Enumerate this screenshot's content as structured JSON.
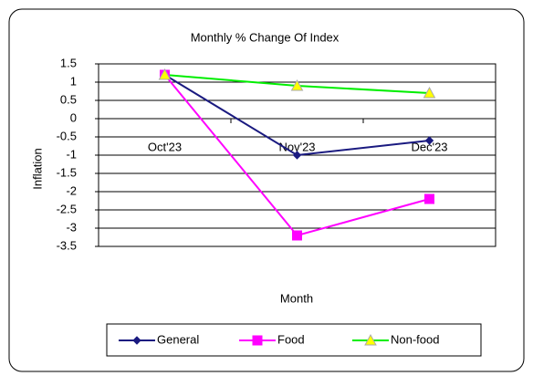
{
  "chart_data": {
    "type": "line",
    "title": "Monthly % Change Of Index",
    "x_label": "Month",
    "y_label": "Inflation",
    "categories": [
      "Oct'23",
      "Nov'23",
      "Dec'23"
    ],
    "series": [
      {
        "name": "General",
        "color": "#1a1a80",
        "marker": "diamond",
        "marker_color": "#1a1a80",
        "values": [
          1.2,
          -1.0,
          -0.6
        ]
      },
      {
        "name": "Food",
        "color": "#ff00ff",
        "marker": "square",
        "marker_color": "#ff00ff",
        "values": [
          1.2,
          -3.2,
          -2.2
        ]
      },
      {
        "name": "Non-food",
        "color": "#00ee00",
        "marker": "triangle",
        "marker_color": "#ffff00",
        "values": [
          1.2,
          0.9,
          0.7
        ]
      }
    ],
    "ylim": [
      -3.5,
      1.5
    ],
    "yticks": [
      1.5,
      1,
      0.5,
      0,
      -0.5,
      -1,
      -1.5,
      -2,
      -2.5,
      -3,
      -3.5
    ],
    "grid": true,
    "legend": "bottom"
  }
}
